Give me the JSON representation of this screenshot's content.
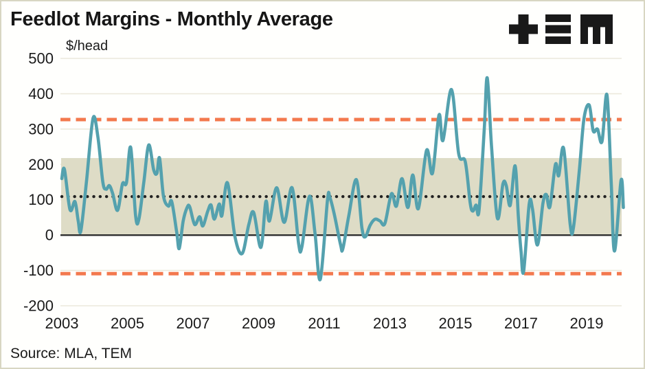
{
  "header": {
    "title": "Feedlot Margins - Monthly Average",
    "unit_label": "$/head",
    "logo_name": "TEM"
  },
  "source": {
    "text": "Source: MLA, TEM"
  },
  "colors": {
    "line": "#54a1ae",
    "band": "#dedcc6",
    "dashed": "#f3794e",
    "dotted": "#222222",
    "grid": "#ece9dc",
    "zero_line": "#2e2e2e",
    "logo": "#191919",
    "text": "#1a1a1a"
  },
  "chart_data": {
    "type": "line",
    "title": "Feedlot Margins - Monthly Average",
    "xlabel": "",
    "ylabel": "$/head",
    "x_ticks": [
      2003,
      2005,
      2007,
      2009,
      2011,
      2013,
      2015,
      2017,
      2019
    ],
    "y_ticks": [
      500,
      400,
      300,
      200,
      100,
      0,
      -100,
      -200
    ],
    "ylim": [
      -200,
      500
    ],
    "xlim": [
      2002.95,
      2020.1
    ],
    "grid": true,
    "legend_position": "none",
    "band": {
      "from": 0,
      "to": 218
    },
    "reference_lines": {
      "average": {
        "value": 109,
        "style": "dotted"
      },
      "upper": {
        "value": 327,
        "style": "dashed"
      },
      "lower": {
        "value": -109,
        "style": "dashed"
      }
    },
    "series": [
      {
        "name": "Feedlot margin ($/head, monthly average)",
        "points": [
          [
            2003.0,
            160
          ],
          [
            2003.08,
            186
          ],
          [
            2003.25,
            72
          ],
          [
            2003.4,
            95
          ],
          [
            2003.5,
            40
          ],
          [
            2003.58,
            12
          ],
          [
            2003.75,
            150
          ],
          [
            2003.95,
            330
          ],
          [
            2004.1,
            278
          ],
          [
            2004.25,
            150
          ],
          [
            2004.35,
            130
          ],
          [
            2004.45,
            140
          ],
          [
            2004.55,
            118
          ],
          [
            2004.7,
            70
          ],
          [
            2004.85,
            145
          ],
          [
            2004.97,
            148
          ],
          [
            2005.1,
            248
          ],
          [
            2005.25,
            55
          ],
          [
            2005.35,
            45
          ],
          [
            2005.5,
            150
          ],
          [
            2005.65,
            255
          ],
          [
            2005.8,
            185
          ],
          [
            2005.9,
            175
          ],
          [
            2005.98,
            218
          ],
          [
            2006.1,
            110
          ],
          [
            2006.25,
            82
          ],
          [
            2006.35,
            95
          ],
          [
            2006.5,
            10
          ],
          [
            2006.58,
            -38
          ],
          [
            2006.7,
            40
          ],
          [
            2006.82,
            78
          ],
          [
            2006.9,
            80
          ],
          [
            2007.05,
            30
          ],
          [
            2007.2,
            52
          ],
          [
            2007.3,
            26
          ],
          [
            2007.45,
            68
          ],
          [
            2007.55,
            85
          ],
          [
            2007.65,
            45
          ],
          [
            2007.8,
            88
          ],
          [
            2007.88,
            55
          ],
          [
            2008.05,
            148
          ],
          [
            2008.28,
            -5
          ],
          [
            2008.5,
            -52
          ],
          [
            2008.7,
            30
          ],
          [
            2008.85,
            64
          ],
          [
            2009.07,
            -35
          ],
          [
            2009.22,
            95
          ],
          [
            2009.33,
            40
          ],
          [
            2009.55,
            134
          ],
          [
            2009.78,
            36
          ],
          [
            2010.02,
            134
          ],
          [
            2010.22,
            -25
          ],
          [
            2010.32,
            -33
          ],
          [
            2010.55,
            110
          ],
          [
            2010.72,
            5
          ],
          [
            2010.88,
            -125
          ],
          [
            2011.1,
            100
          ],
          [
            2011.17,
            107
          ],
          [
            2011.3,
            62
          ],
          [
            2011.5,
            -28
          ],
          [
            2011.57,
            -38
          ],
          [
            2011.75,
            55
          ],
          [
            2011.98,
            157
          ],
          [
            2012.15,
            20
          ],
          [
            2012.25,
            -5
          ],
          [
            2012.4,
            28
          ],
          [
            2012.55,
            45
          ],
          [
            2012.7,
            40
          ],
          [
            2012.85,
            33
          ],
          [
            2013.05,
            117
          ],
          [
            2013.2,
            82
          ],
          [
            2013.37,
            160
          ],
          [
            2013.55,
            78
          ],
          [
            2013.7,
            170
          ],
          [
            2013.87,
            75
          ],
          [
            2014.12,
            240
          ],
          [
            2014.3,
            175
          ],
          [
            2014.5,
            340
          ],
          [
            2014.62,
            268
          ],
          [
            2014.88,
            412
          ],
          [
            2015.1,
            230
          ],
          [
            2015.3,
            208
          ],
          [
            2015.45,
            91
          ],
          [
            2015.53,
            68
          ],
          [
            2015.63,
            85
          ],
          [
            2015.72,
            70
          ],
          [
            2015.88,
            300
          ],
          [
            2015.97,
            445
          ],
          [
            2016.1,
            253
          ],
          [
            2016.28,
            48
          ],
          [
            2016.45,
            145
          ],
          [
            2016.55,
            140
          ],
          [
            2016.67,
            84
          ],
          [
            2016.82,
            196
          ],
          [
            2016.92,
            50
          ],
          [
            2017.0,
            -45
          ],
          [
            2017.08,
            -103
          ],
          [
            2017.25,
            88
          ],
          [
            2017.35,
            74
          ],
          [
            2017.5,
            -28
          ],
          [
            2017.67,
            91
          ],
          [
            2017.77,
            115
          ],
          [
            2017.88,
            80
          ],
          [
            2018.05,
            200
          ],
          [
            2018.15,
            168
          ],
          [
            2018.3,
            245
          ],
          [
            2018.5,
            30
          ],
          [
            2018.6,
            22
          ],
          [
            2018.78,
            185
          ],
          [
            2018.92,
            330
          ],
          [
            2019.08,
            368
          ],
          [
            2019.2,
            295
          ],
          [
            2019.33,
            300
          ],
          [
            2019.47,
            265
          ],
          [
            2019.62,
            397
          ],
          [
            2019.75,
            150
          ],
          [
            2019.85,
            -45
          ],
          [
            2020.05,
            155
          ],
          [
            2020.12,
            78
          ]
        ]
      }
    ]
  }
}
